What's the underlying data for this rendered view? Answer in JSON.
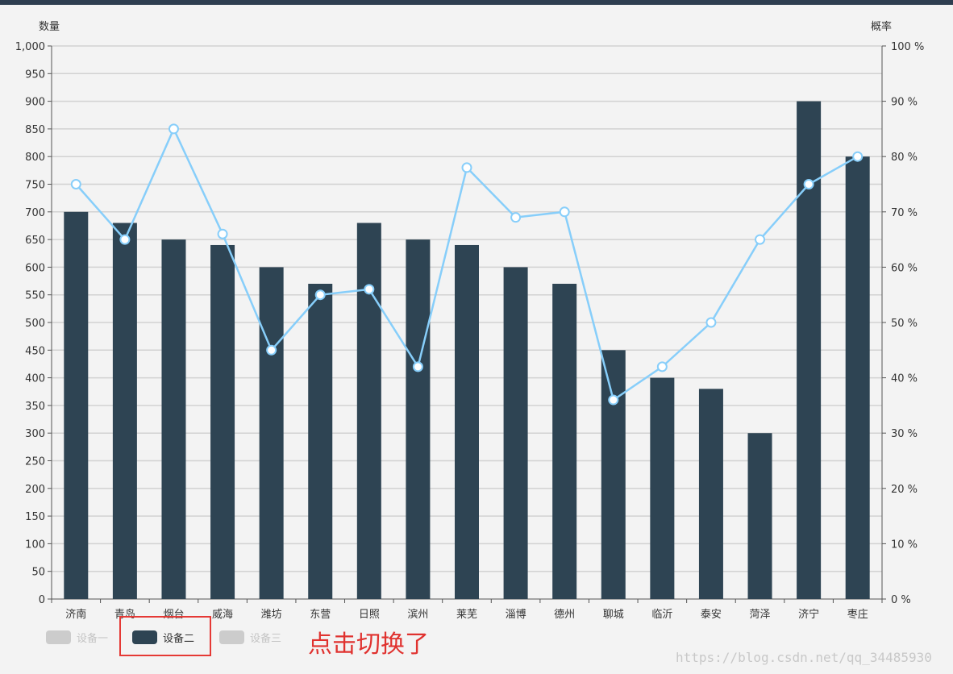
{
  "chart_data": {
    "type": "bar+line",
    "categories": [
      "济南",
      "青岛",
      "烟台",
      "威海",
      "潍坊",
      "东营",
      "日照",
      "滨州",
      "莱芜",
      "淄博",
      "德州",
      "聊城",
      "临沂",
      "泰安",
      "菏泽",
      "济宁",
      "枣庄"
    ],
    "y_left": {
      "label": "数量",
      "min": 0,
      "max": 1000,
      "step": 50,
      "tick_labels": [
        "0",
        "50",
        "100",
        "150",
        "200",
        "250",
        "300",
        "350",
        "400",
        "450",
        "500",
        "550",
        "600",
        "650",
        "700",
        "750",
        "800",
        "850",
        "900",
        "950",
        "1,000"
      ]
    },
    "y_right": {
      "label": "概率",
      "min": 0,
      "max": 100,
      "step": 10,
      "tick_labels": [
        "0 %",
        "10 %",
        "20 %",
        "30 %",
        "40 %",
        "50 %",
        "60 %",
        "70 %",
        "80 %",
        "90 %",
        "100 %"
      ]
    },
    "series": [
      {
        "type": "bar",
        "axis": "left",
        "values": [
          700,
          680,
          650,
          640,
          600,
          570,
          680,
          650,
          640,
          600,
          570,
          450,
          400,
          380,
          300,
          900,
          800
        ]
      },
      {
        "type": "line",
        "axis": "right",
        "values": [
          75,
          65,
          85,
          66,
          45,
          55,
          56,
          42,
          78,
          69,
          70,
          36,
          42,
          50,
          65,
          75,
          80
        ]
      }
    ],
    "legend": {
      "placement": "bottom-left",
      "items": [
        {
          "label": "设备一",
          "active": false
        },
        {
          "label": "设备二",
          "active": true
        },
        {
          "label": "设备三",
          "active": false
        }
      ]
    },
    "grid": true
  },
  "annotation_text": "点击切换了",
  "watermark_text": "https://blog.csdn.net/qq_34485930",
  "colors": {
    "bar": "#2e4453",
    "line": "#87cefa",
    "legend_inactive": "#cccccc",
    "annotation": "#e0322f",
    "highlight_box": "#e53935",
    "topbar": "#2e3e50"
  }
}
